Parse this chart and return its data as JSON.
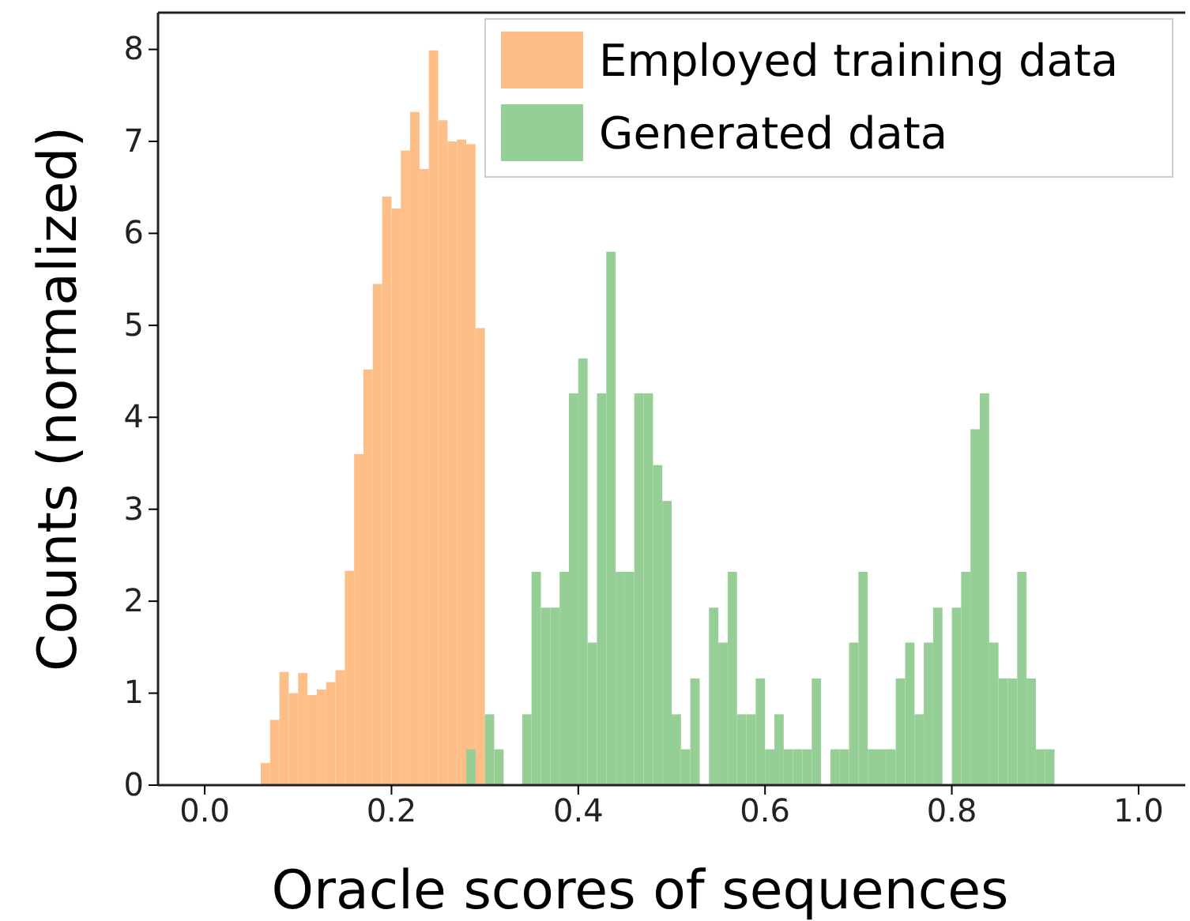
{
  "chart_data": {
    "type": "histogram",
    "xlabel": "Oracle scores of sequences",
    "ylabel": "Counts (normalized)",
    "xlim": [
      -0.05,
      1.05
    ],
    "ylim": [
      0,
      8.4
    ],
    "xticks": [
      {
        "value": 0,
        "label": "0.0"
      },
      {
        "value": 0.2,
        "label": "0.2"
      },
      {
        "value": 0.4,
        "label": "0.4"
      },
      {
        "value": 0.6,
        "label": "0.6"
      },
      {
        "value": 0.8,
        "label": "0.8"
      },
      {
        "value": 1,
        "label": "1.0"
      }
    ],
    "yticks": [
      0,
      1,
      2,
      3,
      4,
      5,
      6,
      7,
      8
    ],
    "legend": "top right",
    "bins": [
      0.06,
      0.07,
      0.08,
      0.09,
      0.1,
      0.11,
      0.12,
      0.13,
      0.14,
      0.15,
      0.16,
      0.17,
      0.18,
      0.19,
      0.2,
      0.21,
      0.22,
      0.23,
      0.24,
      0.25,
      0.26,
      0.27,
      0.28,
      0.29,
      0.3,
      0.31,
      0.32,
      0.33,
      0.34,
      0.35,
      0.36,
      0.37,
      0.38,
      0.39,
      0.4,
      0.41,
      0.42,
      0.43,
      0.44,
      0.45,
      0.46,
      0.47,
      0.48,
      0.49,
      0.5,
      0.51,
      0.52,
      0.53,
      0.54,
      0.55,
      0.56,
      0.57,
      0.58,
      0.59,
      0.6,
      0.61,
      0.62,
      0.63,
      0.64,
      0.65,
      0.66,
      0.67,
      0.68,
      0.69,
      0.7,
      0.71,
      0.72,
      0.73,
      0.74,
      0.75,
      0.76,
      0.77,
      0.78,
      0.79,
      0.8,
      0.81,
      0.82,
      0.83,
      0.84,
      0.85,
      0.86,
      0.87,
      0.88,
      0.89,
      0.9,
      0.91
    ],
    "series": [
      {
        "name": "Employed training data",
        "color": "#fdbf87",
        "values": [
          0.24,
          0.71,
          1.23,
          1.0,
          1.22,
          0.98,
          1.04,
          1.12,
          1.25,
          2.33,
          3.6,
          4.52,
          5.45,
          6.4,
          6.27,
          6.9,
          7.32,
          6.7,
          7.99,
          7.23,
          7.0,
          7.02,
          6.97,
          4.97,
          null,
          null,
          null,
          null,
          null,
          null,
          null,
          null,
          null,
          null,
          null,
          null,
          null,
          null,
          null,
          null,
          null,
          null,
          null,
          null,
          null,
          null,
          null,
          null,
          null,
          null,
          null,
          null,
          null,
          null,
          null,
          null,
          null,
          null,
          null,
          null,
          null,
          null,
          null,
          null,
          null,
          null,
          null,
          null,
          null,
          null,
          null,
          null,
          null,
          null,
          null,
          null,
          null,
          null,
          null,
          null,
          null,
          null,
          null,
          null,
          null
        ]
      },
      {
        "name": "Generated data",
        "color": "#95cf95",
        "values": [
          null,
          null,
          null,
          null,
          null,
          null,
          null,
          null,
          null,
          null,
          null,
          null,
          null,
          null,
          null,
          null,
          null,
          null,
          null,
          null,
          null,
          null,
          0.39,
          0,
          0.77,
          0.39,
          0,
          0,
          0.77,
          2.32,
          1.93,
          1.93,
          2.32,
          4.26,
          4.64,
          1.55,
          4.26,
          5.8,
          2.32,
          2.32,
          4.26,
          4.26,
          3.48,
          3.09,
          0.77,
          0.39,
          1.16,
          0,
          1.93,
          1.55,
          2.32,
          0.77,
          0.77,
          1.16,
          0.39,
          0.77,
          0.39,
          0.39,
          0.39,
          1.16,
          0,
          0.39,
          0.39,
          1.55,
          2.32,
          0.39,
          0.39,
          0.39,
          1.16,
          1.55,
          0.77,
          1.55,
          1.93,
          0,
          1.93,
          2.32,
          3.87,
          4.26,
          1.55,
          1.16,
          1.16,
          2.32,
          1.16,
          0.39,
          0.39
        ]
      }
    ]
  }
}
